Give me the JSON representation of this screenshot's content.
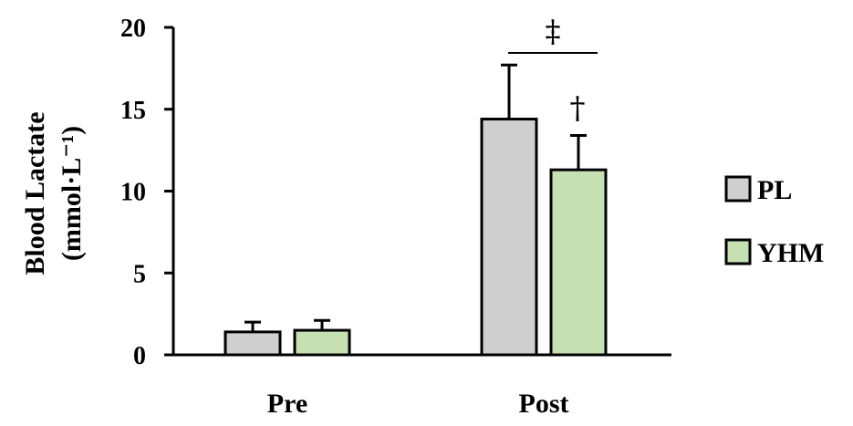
{
  "chart_data": {
    "type": "bar",
    "categories": [
      "Pre",
      "Post"
    ],
    "series": [
      {
        "name": "PL",
        "values": [
          1.4,
          14.4
        ],
        "errors": [
          0.6,
          3.3
        ],
        "color": "#cfcfcf"
      },
      {
        "name": "YHM",
        "values": [
          1.5,
          11.3
        ],
        "errors": [
          0.6,
          2.1
        ],
        "color": "#c6e0b4"
      }
    ],
    "ylabel_line1": "Blood Lactate",
    "ylabel_line2": "(mmol·L⁻¹)",
    "ylim": [
      0,
      20
    ],
    "yticks": [
      "0",
      "5",
      "10",
      "15",
      "20"
    ],
    "grid": false,
    "legend": "right",
    "annotations": {
      "bracket_symbol": "‡",
      "yhm_post_symbol": "†"
    }
  }
}
